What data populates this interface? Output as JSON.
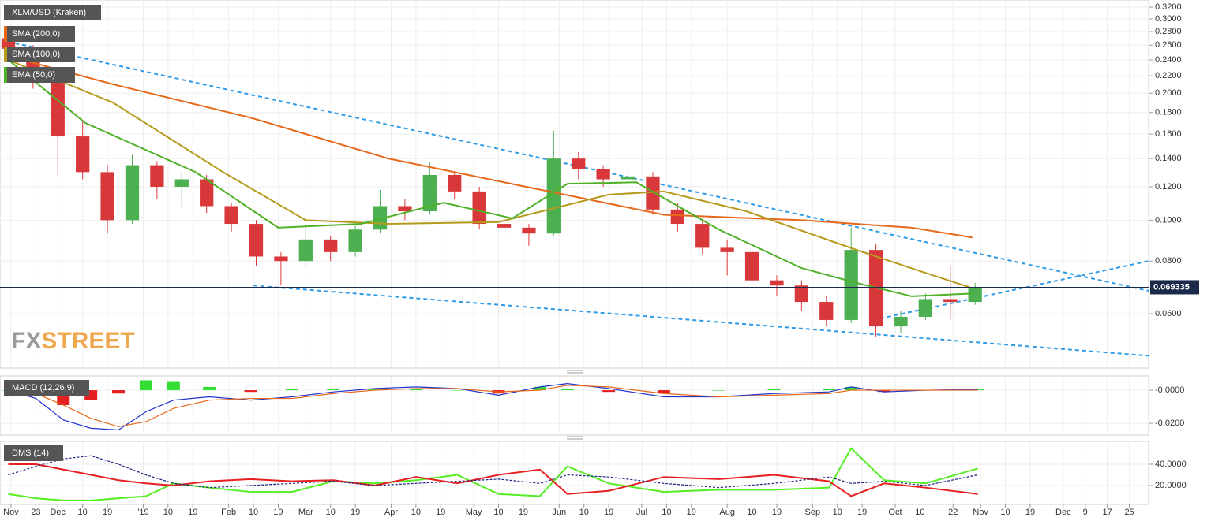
{
  "chart_data": [
    {
      "type": "candlestick",
      "title": "XLM/USD (Kraken)",
      "log_scale": true,
      "up_color": "#4caf50",
      "down_color": "#d9383a",
      "x": [
        12,
        21,
        30,
        39,
        48,
        57,
        66,
        75,
        84,
        93,
        102,
        111,
        120,
        129,
        138,
        147,
        156,
        165,
        174,
        183,
        192,
        201,
        210,
        219,
        228,
        237,
        246,
        255,
        264,
        273,
        282,
        291,
        300,
        309,
        318,
        327,
        336,
        345,
        354,
        363
      ],
      "open": [
        0.27,
        0.255,
        0.215,
        0.158,
        0.13,
        0.1,
        0.135,
        0.12,
        0.125,
        0.108,
        0.098,
        0.082,
        0.08,
        0.09,
        0.084,
        0.095,
        0.108,
        0.105,
        0.128,
        0.117,
        0.098,
        0.096,
        0.093,
        0.14,
        0.132,
        0.125,
        0.127,
        0.106,
        0.098,
        0.086,
        0.084,
        0.072,
        0.07,
        0.064,
        0.058,
        0.085,
        0.056,
        0.059,
        0.065,
        0.064
      ],
      "high": [
        0.28,
        0.26,
        0.22,
        0.172,
        0.135,
        0.143,
        0.138,
        0.13,
        0.128,
        0.11,
        0.1,
        0.084,
        0.098,
        0.092,
        0.097,
        0.118,
        0.112,
        0.137,
        0.13,
        0.12,
        0.1,
        0.098,
        0.163,
        0.145,
        0.135,
        0.133,
        0.13,
        0.11,
        0.1,
        0.09,
        0.086,
        0.074,
        0.072,
        0.066,
        0.096,
        0.088,
        0.061,
        0.067,
        0.078,
        0.071
      ],
      "low": [
        0.25,
        0.205,
        0.128,
        0.125,
        0.093,
        0.098,
        0.112,
        0.108,
        0.104,
        0.094,
        0.078,
        0.07,
        0.078,
        0.08,
        0.082,
        0.093,
        0.1,
        0.103,
        0.112,
        0.095,
        0.092,
        0.087,
        0.092,
        0.125,
        0.12,
        0.121,
        0.103,
        0.094,
        0.083,
        0.074,
        0.07,
        0.066,
        0.061,
        0.056,
        0.057,
        0.053,
        0.054,
        0.058,
        0.058,
        0.063
      ],
      "close": [
        0.255,
        0.215,
        0.158,
        0.13,
        0.1,
        0.135,
        0.12,
        0.125,
        0.108,
        0.098,
        0.082,
        0.08,
        0.09,
        0.084,
        0.095,
        0.108,
        0.105,
        0.128,
        0.117,
        0.098,
        0.096,
        0.093,
        0.14,
        0.132,
        0.125,
        0.127,
        0.106,
        0.098,
        0.086,
        0.084,
        0.072,
        0.07,
        0.064,
        0.058,
        0.085,
        0.056,
        0.059,
        0.065,
        0.064,
        0.0693
      ],
      "overlays": [
        {
          "name": "SMA (200,0)",
          "color": "#e8681a",
          "x": [
            12,
            50,
            100,
            150,
            200,
            250,
            300,
            340,
            362
          ],
          "values": [
            0.245,
            0.21,
            0.175,
            0.14,
            0.12,
            0.103,
            0.1,
            0.096,
            0.091
          ]
        },
        {
          "name": "SMA (100,0)",
          "color": "#b59a1c",
          "x": [
            12,
            50,
            90,
            120,
            150,
            190,
            230,
            250,
            280,
            320,
            345,
            362
          ],
          "values": [
            0.24,
            0.19,
            0.13,
            0.1,
            0.098,
            0.099,
            0.115,
            0.117,
            0.105,
            0.085,
            0.075,
            0.069
          ]
        },
        {
          "name": "EMA (50,0)",
          "color": "#4db025",
          "x": [
            12,
            40,
            80,
            110,
            140,
            170,
            195,
            215,
            240,
            270,
            300,
            320,
            340,
            362
          ],
          "values": [
            0.24,
            0.17,
            0.13,
            0.096,
            0.098,
            0.11,
            0.101,
            0.122,
            0.123,
            0.095,
            0.077,
            0.071,
            0.066,
            0.067
          ]
        }
      ],
      "trendline_color": "#2d9be8",
      "trendlines": [
        {
          "x": [
            12,
            426
          ],
          "values": [
            0.265,
            0.068
          ]
        },
        {
          "x": [
            101,
            426
          ],
          "values": [
            0.07,
            0.0477
          ]
        },
        {
          "x": [
            326,
            426
          ],
          "values": [
            0.058,
            0.08
          ]
        }
      ],
      "last_price": {
        "value": 0.069335,
        "label": "0.069335"
      },
      "logo": [
        "FX",
        "STREET"
      ],
      "ylim": [
        0.0446,
        0.3327
      ],
      "yticks": [
        {
          "value": 0.32,
          "label": "0.3200"
        },
        {
          "value": 0.3,
          "label": "0.3000"
        },
        {
          "value": 0.28,
          "label": "0.2800"
        },
        {
          "value": 0.26,
          "label": "0.2600"
        },
        {
          "value": 0.24,
          "label": "0.2400"
        },
        {
          "value": 0.22,
          "label": "0.2200"
        },
        {
          "value": 0.2,
          "label": "0.2000"
        },
        {
          "value": 0.18,
          "label": "0.1800"
        },
        {
          "value": 0.16,
          "label": "0.1600"
        },
        {
          "value": 0.14,
          "label": "0.1400"
        },
        {
          "value": 0.12,
          "label": "0.1200"
        },
        {
          "value": 0.1,
          "label": "0.1000"
        },
        {
          "value": 0.08,
          "label": "0.0800"
        },
        {
          "value": 0.06,
          "label": "0.0600"
        }
      ]
    },
    {
      "type": "macd",
      "title": "MACD (12,26,9)",
      "x": [
        12,
        22,
        32,
        42,
        52,
        62,
        72,
        85,
        100,
        115,
        130,
        145,
        160,
        175,
        190,
        205,
        215,
        230,
        250,
        270,
        290,
        310,
        318,
        330,
        345,
        364
      ],
      "lines": [
        {
          "color": "#2233cc",
          "values": [
            0,
            -0.005,
            -0.018,
            -0.023,
            -0.024,
            -0.013,
            -0.006,
            -0.004,
            -0.006,
            -0.004,
            -0.001,
            0.001,
            0.002,
            0.001,
            -0.003,
            0.002,
            0.004,
            0.001,
            -0.004,
            -0.004,
            -0.002,
            -0.001,
            0.002,
            -0.001,
            0,
            0.0005
          ]
        },
        {
          "color": "#e8681a",
          "values": [
            0,
            -0.002,
            -0.009,
            -0.017,
            -0.022,
            -0.019,
            -0.011,
            -0.006,
            -0.005,
            -0.005,
            -0.002,
            0,
            0.001,
            0.001,
            -0.001,
            0,
            0.003,
            0.002,
            -0.002,
            -0.004,
            -0.003,
            -0.002,
            0,
            0,
            0,
            0
          ]
        }
      ],
      "histogram": {
        "up_color": "#33dd33",
        "down_color": "#e62020",
        "values": [
          0,
          -0.003,
          -0.009,
          -0.006,
          -0.002,
          0.006,
          0.005,
          0.002,
          -0.001,
          0.001,
          0.001,
          0.001,
          0.001,
          0,
          -0.002,
          0.002,
          0.001,
          -0.001,
          -0.002,
          0,
          0.001,
          0.001,
          0.002,
          -0.001,
          0,
          0.0005
        ]
      },
      "ylim": [
        -0.0271,
        0.0086
      ],
      "yticks": [
        {
          "value": 0,
          "label": "-0.0000"
        },
        {
          "value": -0.02,
          "label": "-0.0200"
        }
      ]
    },
    {
      "type": "dms",
      "title": "DMS (14)",
      "x": [
        12,
        22,
        32,
        42,
        52,
        62,
        72,
        85,
        100,
        115,
        130,
        145,
        160,
        175,
        190,
        205,
        215,
        230,
        250,
        270,
        290,
        310,
        318,
        330,
        345,
        364
      ],
      "lines": [
        {
          "color": "#55ee22",
          "dash": false,
          "values": [
            12,
            8,
            6,
            6,
            8,
            10,
            22,
            18,
            14,
            14,
            24,
            22,
            25,
            30,
            12,
            10,
            38,
            22,
            14,
            16,
            16,
            18,
            55,
            25,
            22,
            36
          ]
        },
        {
          "color": "#e62020",
          "dash": false,
          "values": [
            40,
            40,
            35,
            30,
            25,
            22,
            20,
            24,
            26,
            24,
            25,
            20,
            28,
            22,
            30,
            35,
            12,
            15,
            28,
            26,
            30,
            24,
            10,
            22,
            18,
            12
          ]
        },
        {
          "color": "#1a237e",
          "dash": true,
          "values": [
            30,
            38,
            45,
            48,
            40,
            30,
            22,
            18,
            20,
            22,
            24,
            20,
            22,
            24,
            26,
            22,
            30,
            28,
            22,
            18,
            22,
            28,
            22,
            24,
            20,
            30
          ]
        }
      ],
      "ylim": [
        2.2,
        61.5
      ],
      "yticks": [
        {
          "value": 40,
          "label": "40.0000"
        },
        {
          "value": 20,
          "label": "20.0000"
        }
      ],
      "xlim": [
        9,
        426
      ],
      "xticks": [
        {
          "value": 13,
          "label": "Nov"
        },
        {
          "value": 22,
          "label": "23"
        },
        {
          "value": 30,
          "label": "Dec"
        },
        {
          "value": 39,
          "label": "10"
        },
        {
          "value": 48,
          "label": "19"
        },
        {
          "value": 61,
          "label": "'19"
        },
        {
          "value": 70,
          "label": "10"
        },
        {
          "value": 79,
          "label": "19"
        },
        {
          "value": 92,
          "label": "Feb"
        },
        {
          "value": 101,
          "label": "10"
        },
        {
          "value": 110,
          "label": "19"
        },
        {
          "value": 120,
          "label": "Mar"
        },
        {
          "value": 129,
          "label": "10"
        },
        {
          "value": 138,
          "label": "19"
        },
        {
          "value": 151,
          "label": "Apr"
        },
        {
          "value": 160,
          "label": "10"
        },
        {
          "value": 169,
          "label": "19"
        },
        {
          "value": 181,
          "label": "May"
        },
        {
          "value": 190,
          "label": "10"
        },
        {
          "value": 199,
          "label": "19"
        },
        {
          "value": 212,
          "label": "Jun"
        },
        {
          "value": 221,
          "label": "10"
        },
        {
          "value": 230,
          "label": "19"
        },
        {
          "value": 242,
          "label": "Jul"
        },
        {
          "value": 251,
          "label": "10"
        },
        {
          "value": 260,
          "label": "19"
        },
        {
          "value": 273,
          "label": "Aug"
        },
        {
          "value": 282,
          "label": "10"
        },
        {
          "value": 291,
          "label": "19"
        },
        {
          "value": 304,
          "label": "Sep"
        },
        {
          "value": 313,
          "label": "10"
        },
        {
          "value": 322,
          "label": "19"
        },
        {
          "value": 334,
          "label": "Oct"
        },
        {
          "value": 343,
          "label": "10"
        },
        {
          "value": 355,
          "label": "22"
        },
        {
          "value": 365,
          "label": "Nov"
        },
        {
          "value": 374,
          "label": "10"
        },
        {
          "value": 383,
          "label": "19"
        },
        {
          "value": 395,
          "label": "Dec"
        },
        {
          "value": 403,
          "label": "9"
        },
        {
          "value": 411,
          "label": "17"
        },
        {
          "value": 419,
          "label": "25"
        }
      ]
    }
  ]
}
